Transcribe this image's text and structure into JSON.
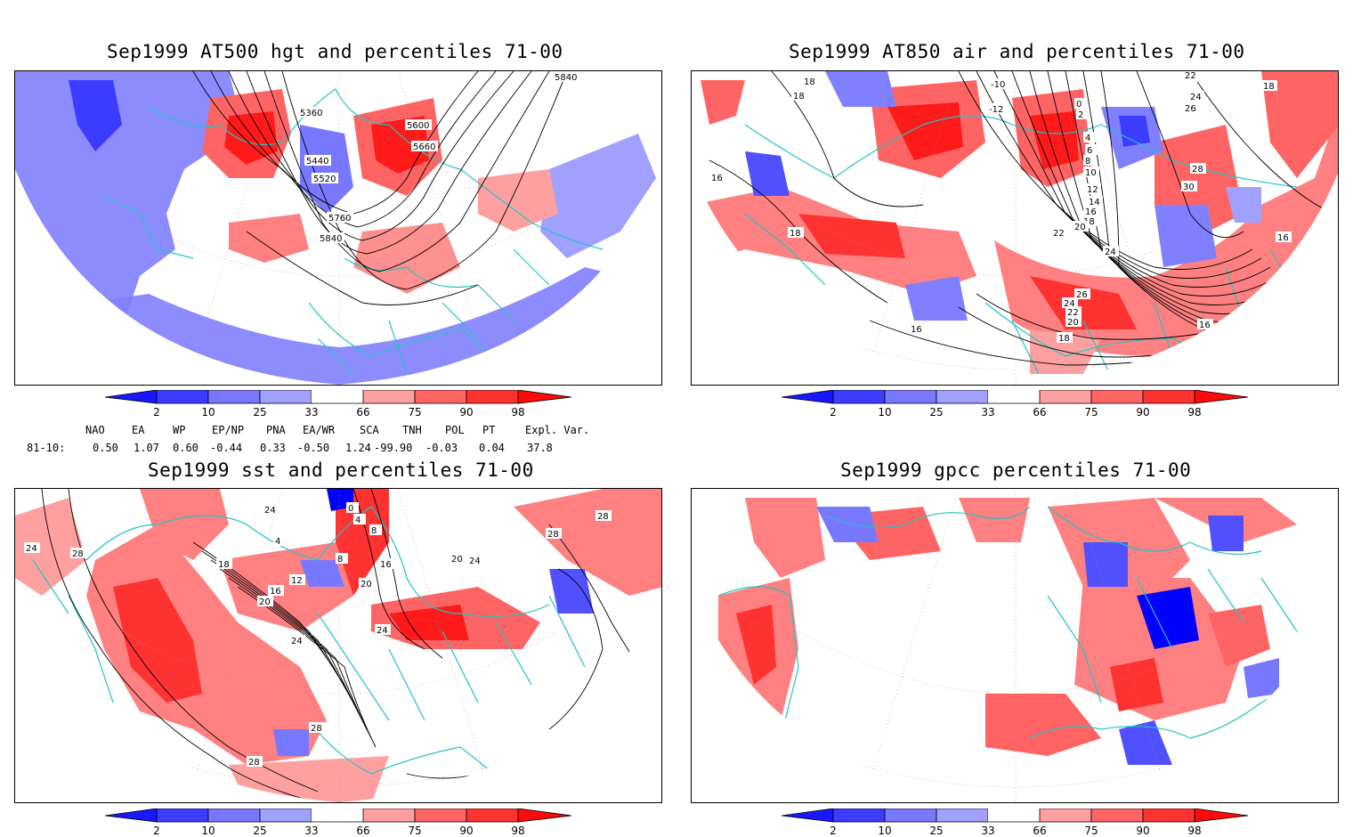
{
  "panels": [
    {
      "title": "Sep1999 AT500 hgt and percentiles 71-00",
      "contour_labels": [
        "5840",
        "5360",
        "5600",
        "5660",
        "5440",
        "5520",
        "5760",
        "5840"
      ]
    },
    {
      "title": "Sep1999 AT850 air and percentiles 71-00",
      "contour_labels": [
        "18",
        "18",
        "-10",
        "-12",
        "0",
        "2",
        "22",
        "24",
        "26",
        "18",
        "28",
        "30",
        "4",
        "6",
        "8",
        "10",
        "12",
        "14",
        "16",
        "18",
        "16",
        "16",
        "22",
        "20",
        "24",
        "26",
        "24",
        "22",
        "20",
        "18",
        "16",
        "18",
        "16"
      ]
    },
    {
      "title": "Sep1999 sst and percentiles 71-00",
      "contour_labels": [
        "24",
        "28",
        "24",
        "0",
        "4",
        "8",
        "4",
        "8",
        "18",
        "16",
        "12",
        "16",
        "20",
        "20",
        "24",
        "24",
        "28",
        "20",
        "24",
        "28",
        "28",
        "28"
      ]
    },
    {
      "title": "Sep1999 gpcc percentiles 71-00",
      "contour_labels": []
    }
  ],
  "colorbar": {
    "ticks": [
      "2",
      "10",
      "25",
      "33",
      "66",
      "75",
      "90",
      "98"
    ],
    "colors": {
      "p0": "#1818ff",
      "p2": "#3c3cff",
      "p10": "#7878ff",
      "p25": "#a0a0ff",
      "p66": "#ffa0a0",
      "p75": "#ff6464",
      "p90": "#ff3232",
      "p98": "#ff0a0a"
    }
  },
  "indices": {
    "headers": [
      "NAO",
      "EA",
      "WP",
      "EP/NP",
      "PNA",
      "EA/WR",
      "SCA",
      "TNH",
      "POL",
      "PT",
      "Expl. Var."
    ],
    "row_label": "81-10:",
    "values": [
      "0.50",
      "1.07",
      "0.60",
      "-0.44",
      "0.33",
      "-0.50",
      "1.24",
      "-99.90",
      "-0.03",
      "0.04",
      "37.8"
    ]
  },
  "line_colors": {
    "coast": "#22c4c4",
    "contour": "#000000",
    "grid": "#999999"
  }
}
